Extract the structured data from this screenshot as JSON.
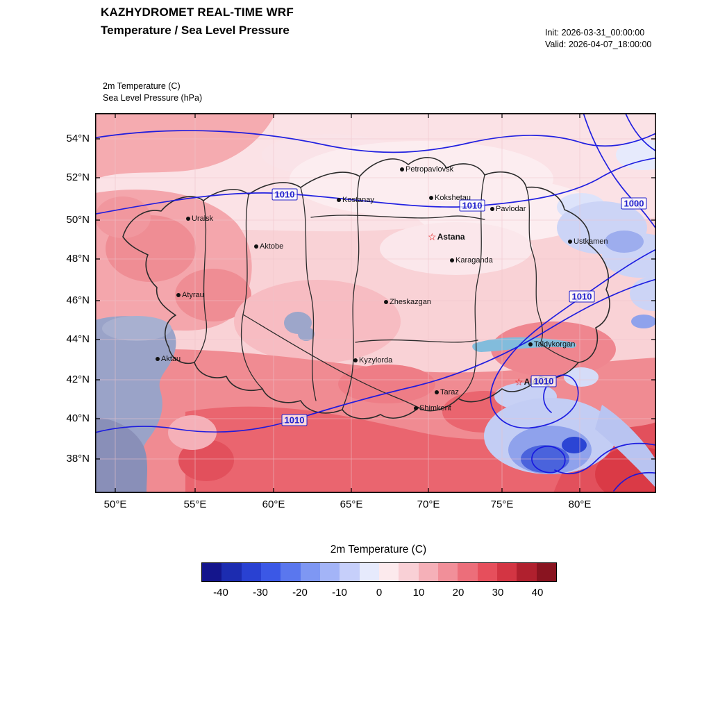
{
  "header": {
    "title_line1": "KAZHYDROMET REAL-TIME WRF",
    "title_line2": "Temperature / Sea Level Pressure",
    "init": "Init: 2026-03-31_00:00:00",
    "valid": "Valid: 2026-04-07_18:00:00"
  },
  "map": {
    "field_label1": "2m Temperature   (C)",
    "field_label2": "Sea Level Pressure   (hPa)",
    "lat_labels": [
      "54°N",
      "52°N",
      "50°N",
      "48°N",
      "46°N",
      "44°N",
      "42°N",
      "40°N",
      "38°N"
    ],
    "lon_labels": [
      "50°E",
      "55°E",
      "60°E",
      "65°E",
      "70°E",
      "75°E",
      "80°E"
    ],
    "cities": [
      {
        "name": "Petropavlovsk"
      },
      {
        "name": "Kostanay"
      },
      {
        "name": "Kokshetau"
      },
      {
        "name": "Pavlodar"
      },
      {
        "name": "Uralsk"
      },
      {
        "name": "Aktobe"
      },
      {
        "name": "Ustkamen"
      },
      {
        "name": "Karaganda"
      },
      {
        "name": "Atyrau"
      },
      {
        "name": "Zheskazgan"
      },
      {
        "name": "Aktau"
      },
      {
        "name": "Taldykorgan"
      },
      {
        "name": "Kyzylorda"
      },
      {
        "name": "Taraz"
      },
      {
        "name": "Shimkent"
      }
    ],
    "capitals": [
      {
        "name": "Astana"
      },
      {
        "name": "Almaty"
      }
    ],
    "pressure_labels": [
      {
        "value": "1010"
      },
      {
        "value": "1010"
      },
      {
        "value": "1000"
      },
      {
        "value": "1010"
      },
      {
        "value": "1010"
      },
      {
        "value": "1010"
      }
    ]
  },
  "colorbar": {
    "title": "2m Temperature  (C)",
    "ticks": [
      "-40",
      "-30",
      "-20",
      "-10",
      "0",
      "10",
      "20",
      "30",
      "40"
    ],
    "colors": [
      "#14158c",
      "#1c2cb0",
      "#2941d2",
      "#3b58e6",
      "#5a77ee",
      "#7e97f3",
      "#a3b4f7",
      "#c6cffa",
      "#e6eafc",
      "#fceaed",
      "#f9d0d6",
      "#f5b0b8",
      "#f18f99",
      "#ec6e7a",
      "#e64f5c",
      "#d33543",
      "#b0202e",
      "#891420"
    ]
  },
  "chart_data": {
    "type": "heatmap",
    "title": "KAZHYDROMET REAL-TIME WRF — Temperature / Sea Level Pressure",
    "fields": [
      "2m Temperature (C)",
      "Sea Level Pressure (hPa)"
    ],
    "lat_ticks_deg_n": [
      54,
      52,
      50,
      48,
      46,
      44,
      42,
      40,
      38
    ],
    "lon_ticks_deg_e": [
      50,
      55,
      60,
      65,
      70,
      75,
      80
    ],
    "temperature_scale_c": {
      "min": -45,
      "max": 45,
      "step": 5,
      "labeled_ticks": [
        -40,
        -30,
        -20,
        -10,
        0,
        10,
        20,
        30,
        40
      ]
    },
    "pressure_contour_values_hpa": [
      1000,
      1010
    ]
  }
}
